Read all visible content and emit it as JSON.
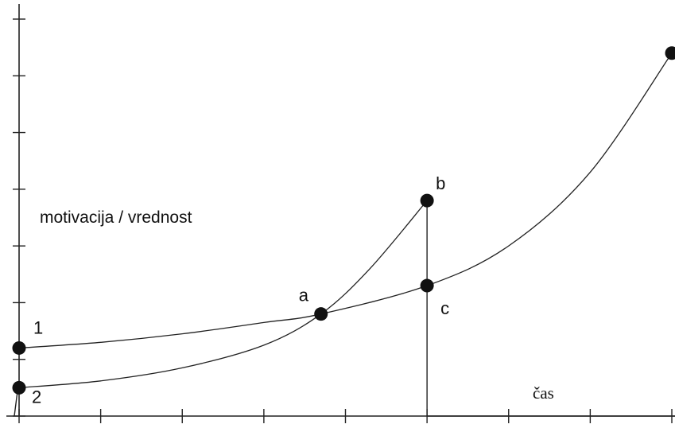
{
  "chart_data": {
    "type": "line",
    "xlabel": "čas",
    "ylabel": "motivacija / vrednost",
    "xlim": [
      0,
      8
    ],
    "ylim": [
      0,
      7
    ],
    "x_ticks": [
      0,
      1,
      2,
      3,
      4,
      5,
      6,
      7,
      8
    ],
    "y_ticks": [
      0,
      1,
      2,
      3,
      4,
      5,
      6,
      7
    ],
    "grid": false,
    "series": [
      {
        "x": [
          0,
          1,
          2,
          3,
          3.7,
          5,
          6,
          7,
          8
        ],
        "values": [
          1.2,
          1.3,
          1.45,
          1.65,
          1.8,
          2.3,
          3.0,
          4.3,
          6.4
        ]
      },
      {
        "x": [
          0,
          1,
          2,
          3,
          3.7,
          4.3,
          5
        ],
        "values": [
          0.5,
          0.62,
          0.85,
          1.25,
          1.8,
          2.6,
          3.8
        ]
      }
    ],
    "drop_line": {
      "x": 5,
      "y_from": 3.8,
      "y_to": 0
    },
    "annotations": [
      {
        "text": "1",
        "x": 0,
        "y": 1.2
      },
      {
        "text": "2",
        "x": 0,
        "y": 0.5
      },
      {
        "text": "a",
        "x": 3.7,
        "y": 1.8
      },
      {
        "text": "b",
        "x": 5,
        "y": 3.8
      },
      {
        "text": "c",
        "x": 5,
        "y": 2.3
      }
    ],
    "points": [
      {
        "x": 0,
        "y": 1.2
      },
      {
        "x": 0,
        "y": 0.5
      },
      {
        "x": 3.7,
        "y": 1.8
      },
      {
        "x": 5,
        "y": 3.8
      },
      {
        "x": 5,
        "y": 2.3
      },
      {
        "x": 8,
        "y": 6.4
      }
    ]
  }
}
